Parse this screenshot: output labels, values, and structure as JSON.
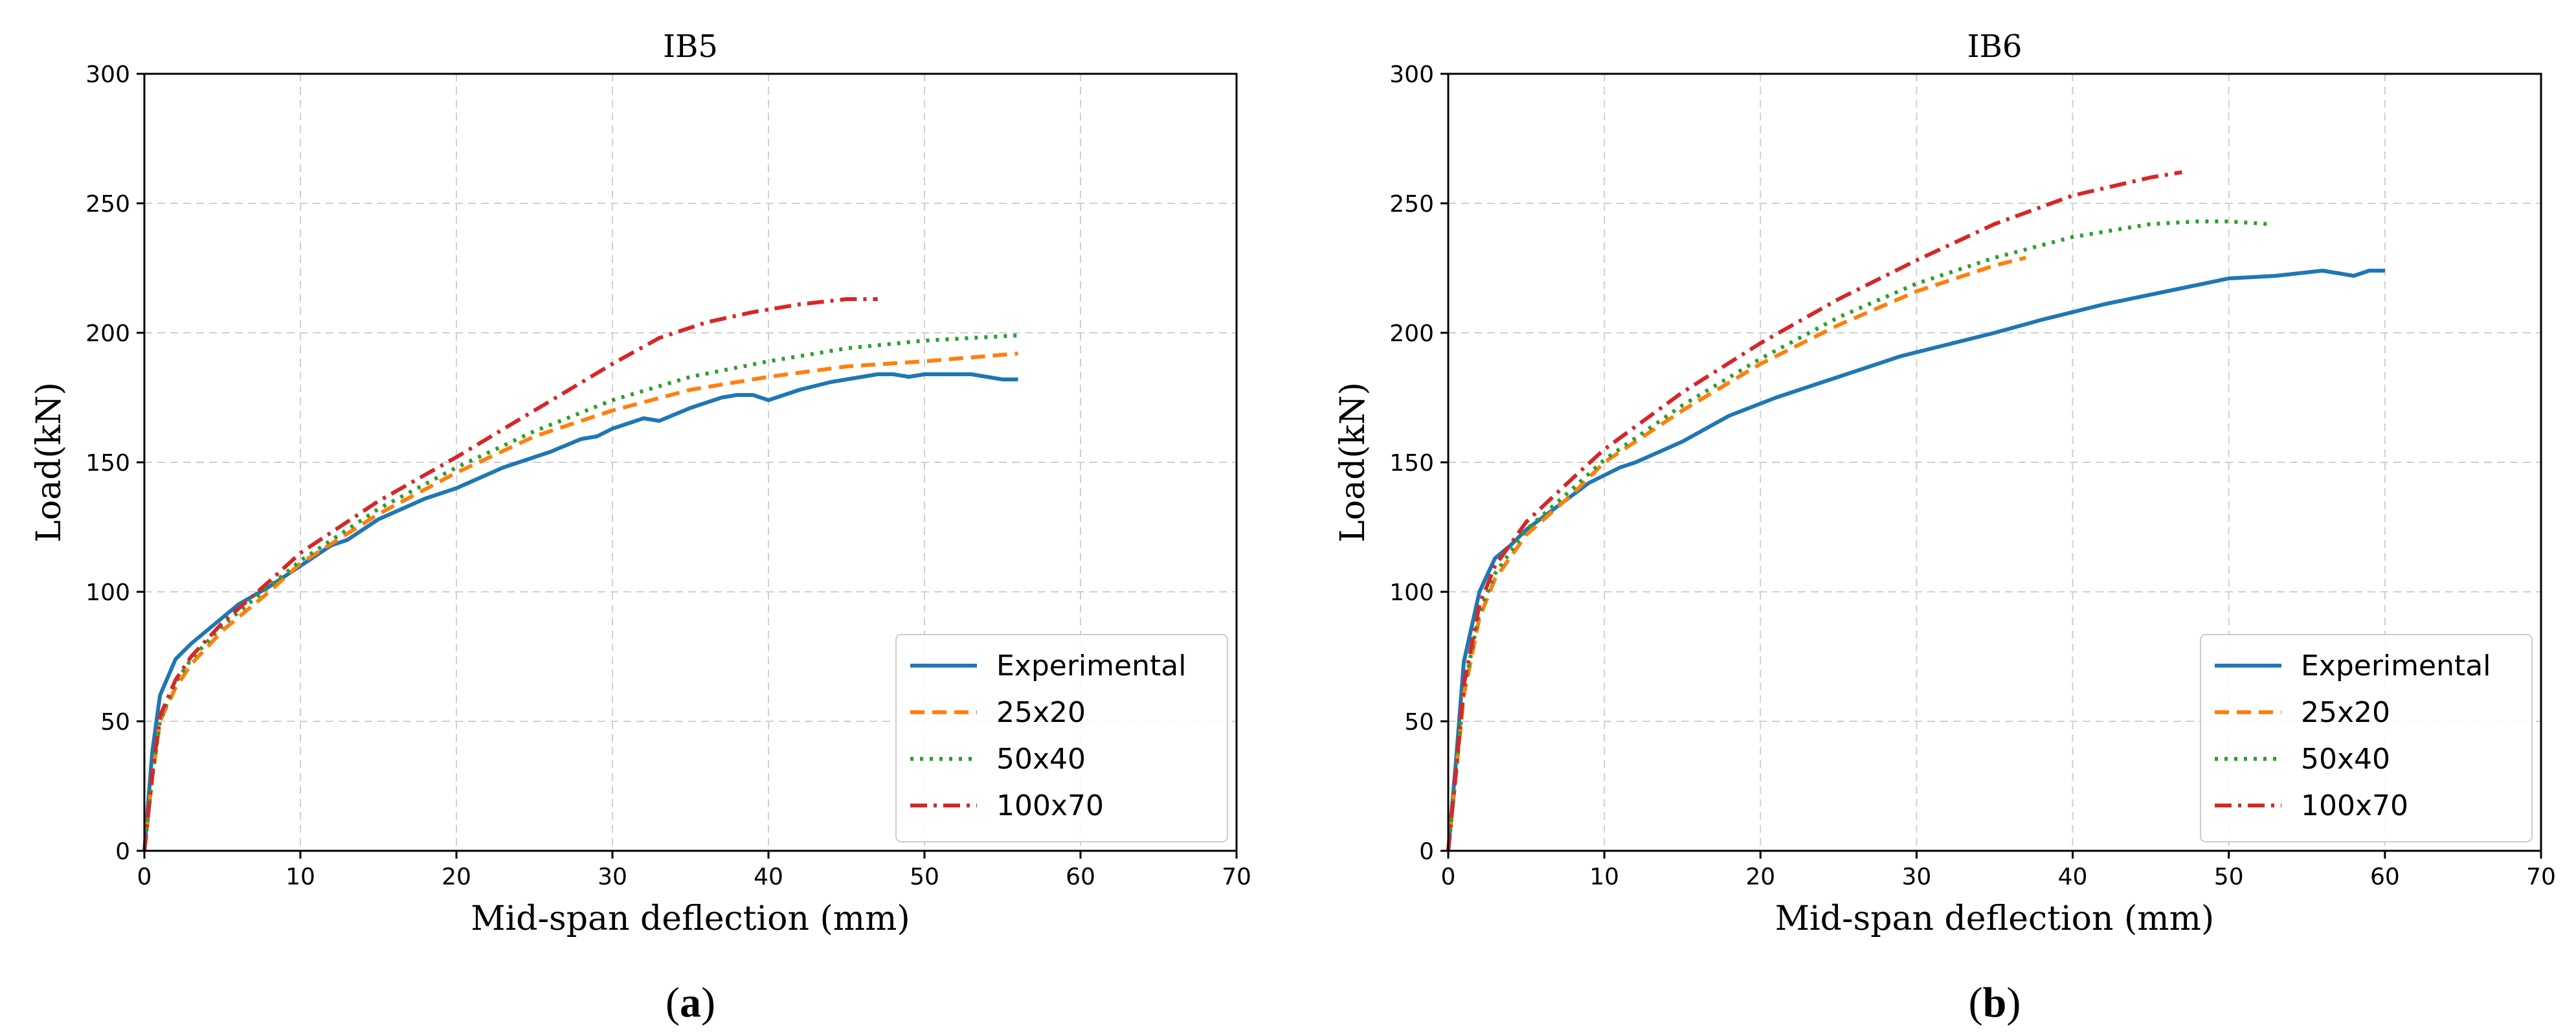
{
  "chart_data": [
    {
      "type": "line",
      "title": "IB5",
      "xlabel": "Mid-span deflection (mm)",
      "ylabel": "Load(kN)",
      "xlim": [
        0,
        70
      ],
      "ylim": [
        0,
        300
      ],
      "xticks": [
        0,
        10,
        20,
        30,
        40,
        50,
        60,
        70
      ],
      "yticks": [
        0,
        50,
        100,
        150,
        200,
        250,
        300
      ],
      "grid": true,
      "legend_position": "lower-right",
      "caption": {
        "open": "(",
        "letter": "a",
        "close": ")"
      },
      "series": [
        {
          "name": "Experimental",
          "color": "#1f77b4",
          "style": "solid",
          "x": [
            0,
            0.5,
            1,
            2,
            3,
            4,
            5,
            6,
            8,
            10,
            12,
            13,
            15,
            18,
            20,
            23,
            26,
            28,
            29,
            30,
            32,
            33,
            35,
            37,
            38,
            39,
            40,
            42,
            44,
            46,
            47,
            48,
            49,
            50,
            53,
            54,
            55,
            56
          ],
          "y": [
            0,
            38,
            60,
            74,
            80,
            85,
            90,
            95,
            102,
            110,
            118,
            120,
            128,
            136,
            140,
            148,
            154,
            159,
            160,
            163,
            167,
            166,
            171,
            175,
            176,
            176,
            174,
            178,
            181,
            183,
            184,
            184,
            183,
            184,
            184,
            183,
            182,
            182
          ]
        },
        {
          "name": "25x20",
          "color": "#ff7f0e",
          "style": "dashed",
          "x": [
            0,
            0.5,
            1,
            2,
            3,
            5,
            8,
            10,
            15,
            20,
            25,
            30,
            35,
            40,
            45,
            50,
            56
          ],
          "y": [
            0,
            28,
            50,
            63,
            72,
            85,
            100,
            111,
            130,
            146,
            160,
            170,
            178,
            183,
            187,
            189,
            192
          ]
        },
        {
          "name": "50x40",
          "color": "#2ca02c",
          "style": "dotted",
          "x": [
            0,
            0.5,
            1,
            2,
            3,
            5,
            8,
            10,
            15,
            20,
            25,
            30,
            35,
            40,
            45,
            50,
            56
          ],
          "y": [
            0,
            28,
            50,
            65,
            74,
            87,
            102,
            112,
            132,
            148,
            162,
            174,
            183,
            189,
            194,
            197,
            199
          ]
        },
        {
          "name": "100x70",
          "color": "#d62728",
          "style": "dashdot",
          "x": [
            0,
            0.5,
            1,
            2,
            3,
            5,
            8,
            10,
            15,
            20,
            25,
            30,
            33,
            36,
            39,
            42,
            45,
            47
          ],
          "y": [
            0,
            29,
            52,
            66,
            75,
            88,
            104,
            115,
            135,
            152,
            170,
            188,
            198,
            204,
            208,
            211,
            213,
            213
          ]
        }
      ]
    },
    {
      "type": "line",
      "title": "IB6",
      "xlabel": "Mid-span deflection (mm)",
      "ylabel": "Load(kN)",
      "xlim": [
        0,
        70
      ],
      "ylim": [
        0,
        300
      ],
      "xticks": [
        0,
        10,
        20,
        30,
        40,
        50,
        60,
        70
      ],
      "yticks": [
        0,
        50,
        100,
        150,
        200,
        250,
        300
      ],
      "grid": true,
      "legend_position": "lower-right",
      "caption": {
        "open": "(",
        "letter": "b",
        "close": ")"
      },
      "series": [
        {
          "name": "Experimental",
          "color": "#1f77b4",
          "style": "solid",
          "x": [
            0,
            0.5,
            1,
            2,
            3,
            4,
            5,
            7,
            9,
            11,
            12,
            15,
            18,
            21,
            24,
            26,
            29,
            31,
            35,
            38,
            42,
            46,
            50,
            53,
            56,
            57,
            58,
            59,
            60
          ],
          "y": [
            0,
            35,
            73,
            100,
            113,
            118,
            124,
            133,
            142,
            148,
            150,
            158,
            168,
            175,
            181,
            185,
            191,
            194,
            200,
            205,
            211,
            216,
            221,
            222,
            224,
            223,
            222,
            224,
            224
          ]
        },
        {
          "name": "25x20",
          "color": "#ff7f0e",
          "style": "dashed",
          "x": [
            0,
            0.5,
            1,
            2,
            3,
            5,
            8,
            10,
            15,
            20,
            25,
            30,
            35,
            37
          ],
          "y": [
            0,
            30,
            60,
            90,
            105,
            122,
            138,
            150,
            170,
            188,
            203,
            216,
            226,
            229
          ]
        },
        {
          "name": "50x40",
          "color": "#2ca02c",
          "style": "dotted",
          "x": [
            0,
            0.5,
            1,
            2,
            3,
            5,
            8,
            10,
            15,
            20,
            25,
            30,
            35,
            40,
            45,
            48,
            50,
            52.5
          ],
          "y": [
            0,
            30,
            62,
            92,
            107,
            124,
            140,
            151,
            172,
            190,
            206,
            219,
            229,
            237,
            242,
            243,
            243,
            242
          ]
        },
        {
          "name": "100x70",
          "color": "#d62728",
          "style": "dashdot",
          "x": [
            0,
            0.5,
            1,
            2,
            3,
            5,
            8,
            10,
            15,
            20,
            25,
            30,
            35,
            40,
            45,
            47
          ],
          "y": [
            0,
            31,
            64,
            95,
            110,
            127,
            144,
            155,
            177,
            196,
            213,
            228,
            242,
            253,
            260,
            262
          ]
        }
      ]
    }
  ]
}
